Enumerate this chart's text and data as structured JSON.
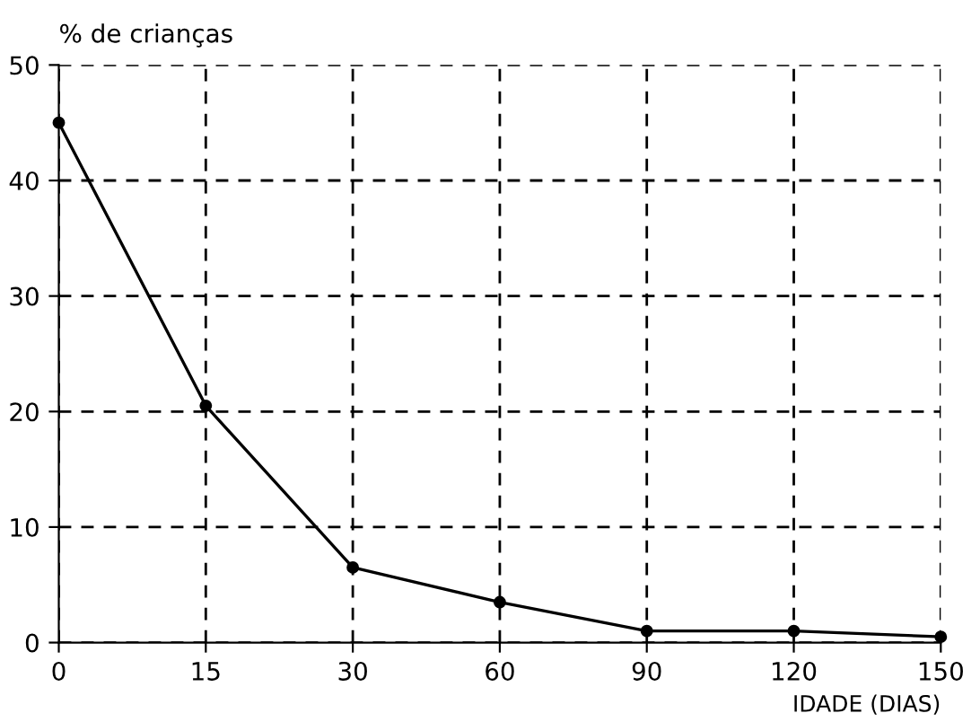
{
  "chart_data": {
    "type": "line",
    "xlabel": "IDADE (DIAS)",
    "ylabel": "% de crianças",
    "categories": [
      "0",
      "15",
      "30",
      "60",
      "90",
      "120",
      "150"
    ],
    "series": [
      {
        "color": "#000000",
        "values": [
          45,
          20.5,
          6.5,
          3.5,
          1,
          1,
          0.5
        ]
      }
    ],
    "ylim": [
      0,
      50
    ],
    "yticks": [
      0,
      10,
      20,
      30,
      40,
      50
    ],
    "grid": true,
    "marker": "circle",
    "line_style": "solid"
  }
}
